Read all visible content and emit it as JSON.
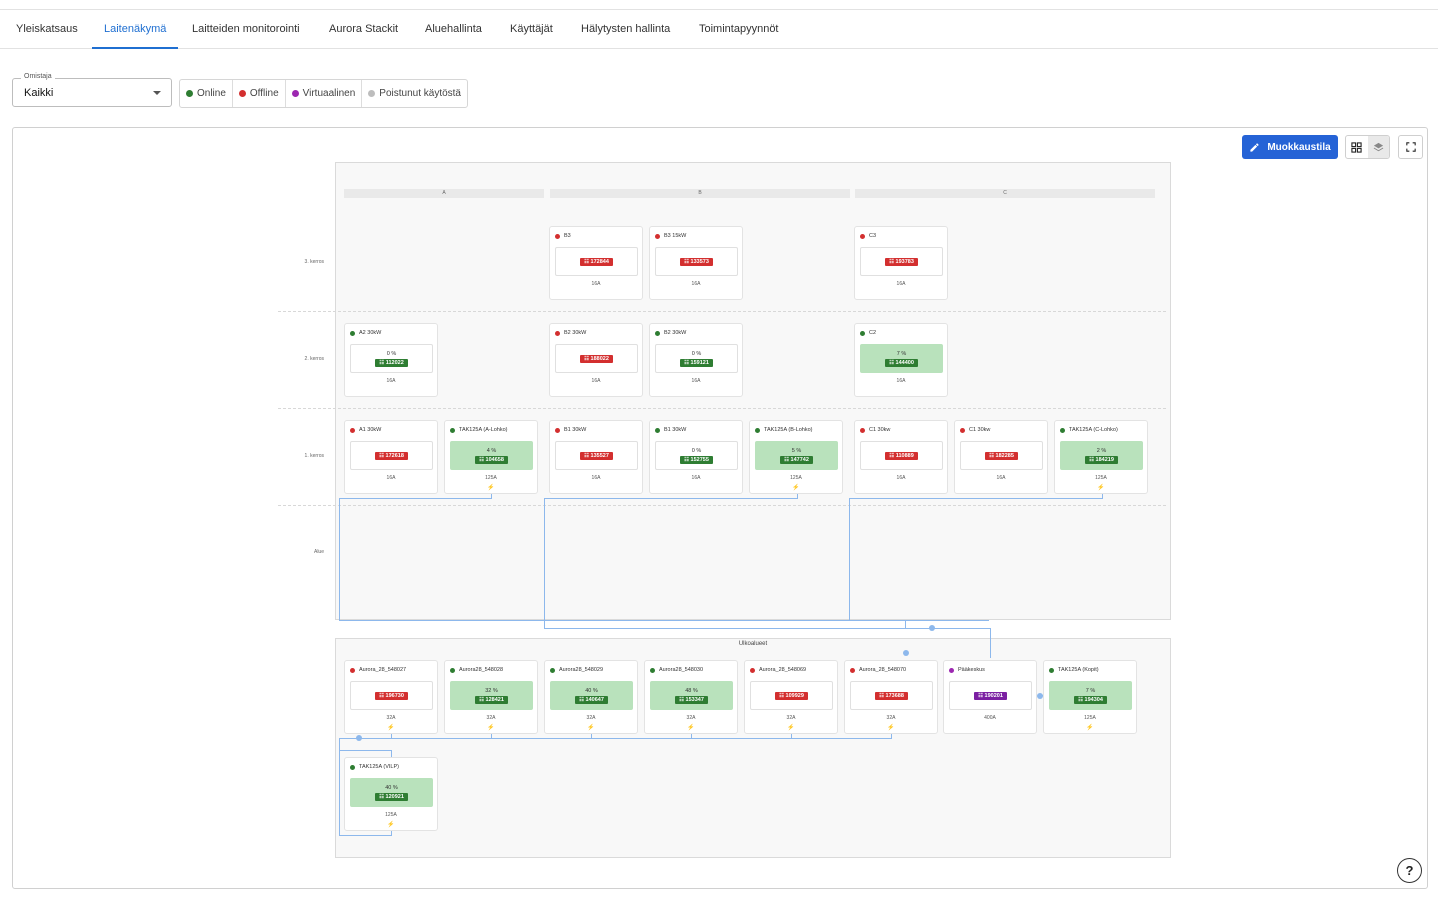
{
  "tabs": [
    "Yleiskatsaus",
    "Laitenäkymä",
    "Laitteiden monitorointi",
    "Aurora Stackit",
    "Aluehallinta",
    "Käyttäjät",
    "Hälytysten hallinta",
    "Toimintapyynnöt"
  ],
  "active_tab": "Laitenäkymä",
  "owner": {
    "label": "Omistaja",
    "value": "Kaikki"
  },
  "legend": [
    {
      "label": "Online",
      "color": "#2e7d32"
    },
    {
      "label": "Offline",
      "color": "#d32f2f"
    },
    {
      "label": "Virtuaalinen",
      "color": "#9c27b0"
    },
    {
      "label": "Poistunut käytöstä",
      "color": "#bdbdbd"
    }
  ],
  "toolbar": {
    "edit_label": "Muokkaustila",
    "help": "?"
  },
  "building": {
    "columns": [
      "A",
      "B",
      "C"
    ],
    "rows": [
      "3. kerros",
      "2. kerros",
      "1. kerros",
      "Alue"
    ]
  },
  "outdoor_title": "Ulkoalueet",
  "devices": [
    {
      "name": "B3",
      "status": "offline",
      "id": "172844",
      "amp": "16A"
    },
    {
      "name": "B3 15kW",
      "status": "offline",
      "id": "133573",
      "amp": "16A"
    },
    {
      "name": "C3",
      "status": "offline",
      "id": "193783",
      "amp": "16A"
    },
    {
      "name": "A2 30kW",
      "status": "online",
      "pct": "0 %",
      "id": "112022",
      "amp": "16A"
    },
    {
      "name": "B2 30kW",
      "status": "offline",
      "id": "188022",
      "amp": "16A"
    },
    {
      "name": "B2 30kW",
      "status": "online",
      "pct": "0 %",
      "id": "159121",
      "amp": "16A"
    },
    {
      "name": "C2",
      "status": "online",
      "pct": "7 %",
      "charging": true,
      "id": "144400",
      "amp": "16A"
    },
    {
      "name": "A1 30kW",
      "status": "offline",
      "id": "172618",
      "amp": "16A"
    },
    {
      "name": "TAK125A (A-Lohko)",
      "status": "online",
      "pct": "4 %",
      "charging": true,
      "id": "104658",
      "amp": "125A",
      "bolt": true
    },
    {
      "name": "B1 30kW",
      "status": "offline",
      "id": "135527",
      "amp": "16A"
    },
    {
      "name": "B1 30kW",
      "status": "online",
      "pct": "0 %",
      "id": "152755",
      "amp": "16A"
    },
    {
      "name": "TAK125A (B-Lohko)",
      "status": "online",
      "pct": "5 %",
      "charging": true,
      "id": "147742",
      "amp": "125A",
      "bolt": true
    },
    {
      "name": "C1 30kw",
      "status": "offline",
      "id": "110889",
      "amp": "16A"
    },
    {
      "name": "C1 30kw",
      "status": "offline",
      "id": "182285",
      "amp": "16A"
    },
    {
      "name": "TAK125A (C-Lohko)",
      "status": "online",
      "pct": "2 %",
      "charging": true,
      "id": "184219",
      "amp": "125A",
      "bolt": true
    },
    {
      "name": "Aurora_28_548027",
      "status": "offline",
      "id": "196730",
      "amp": "32A",
      "bolt": true
    },
    {
      "name": "Aurora28_548028",
      "status": "online",
      "pct": "32 %",
      "charging": true,
      "id": "128421",
      "amp": "32A",
      "bolt": true
    },
    {
      "name": "Aurora28_548029",
      "status": "online",
      "pct": "40 %",
      "charging": true,
      "id": "140647",
      "amp": "32A",
      "bolt": true
    },
    {
      "name": "Aurora28_548030",
      "status": "online",
      "pct": "48 %",
      "charging": true,
      "id": "153347",
      "amp": "32A",
      "bolt": true
    },
    {
      "name": "Aurora_28_548069",
      "status": "offline",
      "id": "109929",
      "amp": "32A",
      "bolt": true
    },
    {
      "name": "Aurora_28_548070",
      "status": "offline",
      "id": "173688",
      "amp": "32A",
      "bolt": true
    },
    {
      "name": "Pääkeskus",
      "status": "virtual",
      "id": "190201",
      "amp": "400A"
    },
    {
      "name": "TAK125A (Kopit)",
      "status": "online",
      "pct": "7 %",
      "charging": true,
      "id": "194304",
      "amp": "125A",
      "bolt": true
    },
    {
      "name": "TAK125A (VILP)",
      "status": "online",
      "pct": "40 %",
      "charging": true,
      "id": "120921",
      "amp": "125A",
      "bolt": true
    }
  ],
  "colors": {
    "online": "#2e7d32",
    "offline": "#d32f2f",
    "virtual": "#9c27b0",
    "accent": "#2563d6",
    "charging_bg": "#b9e2bc"
  }
}
